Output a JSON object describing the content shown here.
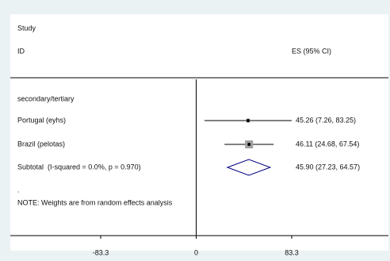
{
  "chart_data": {
    "type": "forest",
    "header_study": "Study",
    "header_id": "ID",
    "header_es": "ES (95% CI)",
    "group": "secondary/tertiary",
    "studies": [
      {
        "name": "Portugal (eyhs)",
        "estimate": 45.26,
        "lo": 7.26,
        "hi": 83.25,
        "value_label": "45.26 (7.26, 83.25)"
      },
      {
        "name": "Brazil (pelotas)",
        "estimate": 46.11,
        "lo": 24.68,
        "hi": 67.54,
        "value_label": "46.11 (24.68, 67.54)"
      }
    ],
    "subtotal": {
      "name": "Subtotal  (I-squared = 0.0%, p = 0.970)",
      "estimate": 45.9,
      "lo": 27.23,
      "hi": 64.57,
      "value_label": "45.90 (27.23, 64.57)"
    },
    "dot": ".",
    "note": "NOTE: Weights are from random effects analysis",
    "reference_line": 0,
    "xlim": [
      -83.3,
      83.3
    ],
    "xticks": [
      -83.3,
      0,
      83.3
    ],
    "color": "#000080"
  }
}
